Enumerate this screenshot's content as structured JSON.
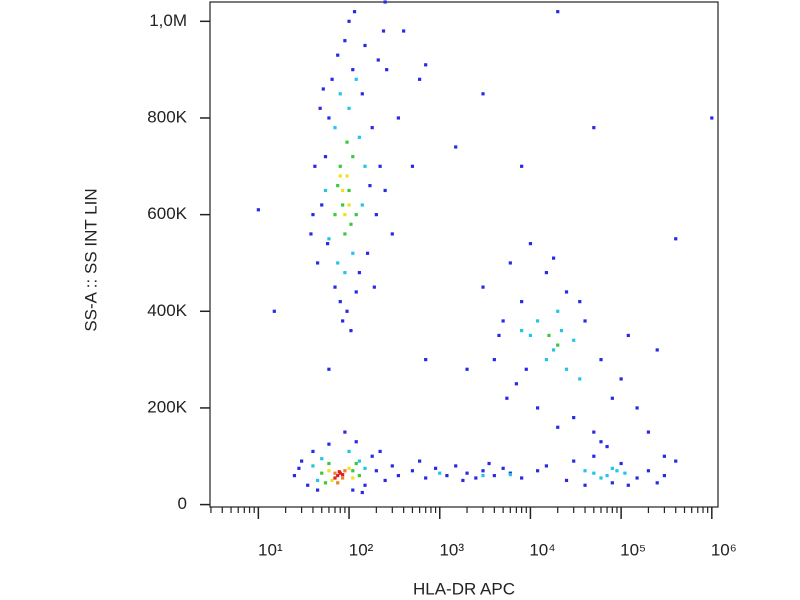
{
  "chart_data": {
    "type": "scatter",
    "x_label": "HLA-DR APC",
    "y_label": "SS-A :: SS INT LIN",
    "xscale": "log",
    "xlim": [
      2.93,
      1170000
    ],
    "ylim": [
      -5000,
      1040000
    ],
    "xticks": [
      {
        "value": 10,
        "label": "10¹"
      },
      {
        "value": 100,
        "label": "10²"
      },
      {
        "value": 1000,
        "label": "10³"
      },
      {
        "value": 10000,
        "label": "10⁴"
      },
      {
        "value": 100000,
        "label": "10⁵"
      },
      {
        "value": 1000000,
        "label": "10⁶"
      }
    ],
    "xminorticks": [
      3,
      4,
      5,
      6,
      7,
      8,
      9,
      20,
      30,
      40,
      50,
      60,
      70,
      80,
      90,
      200,
      300,
      400,
      500,
      600,
      700,
      800,
      900,
      2000,
      3000,
      4000,
      5000,
      6000,
      7000,
      8000,
      9000,
      20000,
      30000,
      40000,
      50000,
      60000,
      70000,
      80000,
      90000,
      200000,
      300000,
      400000,
      500000,
      600000,
      700000,
      800000,
      900000
    ],
    "yticks": [
      0,
      {
        "value": 200000,
        "label": "200K"
      },
      {
        "value": 400000,
        "label": "400K"
      },
      {
        "value": 600000,
        "label": "600K"
      },
      {
        "value": 800000,
        "label": "800K"
      },
      {
        "value": 1000000,
        "label": "1,0M"
      }
    ],
    "series": [
      {
        "color": "#2a2ae6",
        "x": [
          45,
          50,
          55,
          60,
          65,
          70,
          75,
          80,
          90,
          95,
          110,
          120,
          140,
          160,
          180,
          200,
          220,
          250,
          40,
          42,
          48,
          58,
          150,
          170,
          130,
          100,
          300,
          350,
          260,
          85,
          105,
          190,
          38,
          52,
          210,
          240,
          115,
          400,
          500,
          600,
          25,
          30,
          35,
          40,
          45,
          150,
          180,
          200,
          250,
          300,
          120,
          90,
          60,
          220,
          28,
          140,
          110,
          350,
          500,
          700,
          900,
          1200,
          1500,
          2000,
          2500,
          3000,
          4000,
          5000,
          6000,
          8000,
          12000,
          15000,
          600,
          1800,
          3500,
          3000,
          4000,
          5000,
          6000,
          7000,
          8000,
          10000,
          12000,
          15000,
          20000,
          25000,
          30000,
          40000,
          50000,
          60000,
          80000,
          100000,
          150000,
          200000,
          250000,
          300000,
          4500,
          9000,
          18000,
          70000,
          120000,
          35000,
          5500,
          25000,
          30000,
          40000,
          50000,
          80000,
          100000,
          150000,
          200000,
          300000,
          400000,
          60000,
          120000,
          250000,
          10,
          15,
          700,
          1500,
          3000,
          20000,
          50000,
          1000000,
          400000,
          8000,
          2000,
          700,
          60,
          250
        ],
        "values": [
          500000,
          620000,
          720000,
          800000,
          880000,
          450000,
          930000,
          420000,
          960000,
          400000,
          900000,
          440000,
          850000,
          520000,
          780000,
          600000,
          700000,
          650000,
          600000,
          700000,
          820000,
          540000,
          950000,
          660000,
          480000,
          1000000,
          560000,
          800000,
          900000,
          380000,
          360000,
          450000,
          560000,
          860000,
          920000,
          980000,
          1020000,
          980000,
          700000,
          880000,
          60000,
          90000,
          40000,
          110000,
          30000,
          40000,
          100000,
          70000,
          50000,
          80000,
          130000,
          150000,
          125000,
          110000,
          75000,
          25000,
          30000,
          60000,
          70000,
          55000,
          75000,
          60000,
          80000,
          65000,
          55000,
          70000,
          60000,
          75000,
          65000,
          55000,
          70000,
          80000,
          90000,
          50000,
          85000,
          450000,
          300000,
          380000,
          500000,
          250000,
          420000,
          540000,
          200000,
          480000,
          160000,
          440000,
          180000,
          380000,
          150000,
          300000,
          220000,
          260000,
          200000,
          150000,
          320000,
          100000,
          350000,
          280000,
          510000,
          120000,
          350000,
          420000,
          220000,
          50000,
          90000,
          40000,
          100000,
          45000,
          85000,
          55000,
          70000,
          60000,
          90000,
          130000,
          40000,
          45000,
          610000,
          400000,
          910000,
          740000,
          850000,
          1020000,
          780000,
          800000,
          550000,
          700000,
          280000,
          300000,
          280000,
          1040000
        ]
      },
      {
        "color": "#22c4ea",
        "x": [
          60,
          70,
          80,
          90,
          100,
          110,
          130,
          140,
          55,
          120,
          75,
          150,
          40,
          50,
          130,
          150,
          100,
          45,
          10000,
          15000,
          20000,
          25000,
          30000,
          12000,
          18000,
          35000,
          8000,
          22000,
          50000,
          70000,
          90000,
          60000,
          110000,
          40000,
          80000,
          1000,
          3000,
          6000
        ],
        "values": [
          550000,
          780000,
          850000,
          480000,
          820000,
          520000,
          760000,
          620000,
          650000,
          880000,
          500000,
          700000,
          80000,
          95000,
          90000,
          75000,
          110000,
          50000,
          350000,
          300000,
          400000,
          280000,
          340000,
          380000,
          320000,
          260000,
          360000,
          360000,
          65000,
          60000,
          70000,
          55000,
          65000,
          70000,
          75000,
          65000,
          60000,
          62000
        ]
      },
      {
        "color": "#3cc83c",
        "x": [
          70,
          80,
          90,
          100,
          110,
          85,
          95,
          75,
          120,
          105,
          50,
          60,
          110,
          130,
          55,
          120,
          20000,
          16000
        ],
        "values": [
          600000,
          700000,
          560000,
          650000,
          720000,
          620000,
          750000,
          660000,
          600000,
          580000,
          65000,
          85000,
          70000,
          60000,
          45000,
          85000,
          330000,
          350000
        ]
      },
      {
        "color": "#f0e020",
        "x": [
          85,
          95,
          100,
          90,
          80,
          60,
          65,
          100,
          110
        ],
        "values": [
          650000,
          680000,
          620000,
          600000,
          680000,
          70000,
          50000,
          75000,
          55000
        ]
      },
      {
        "color": "#f08020",
        "x": [
          70,
          85,
          90,
          75
        ],
        "values": [
          65000,
          55000,
          70000,
          45000
        ]
      },
      {
        "color": "#e02020",
        "x": [
          75,
          80,
          70,
          85,
          78
        ],
        "values": [
          60000,
          65000,
          55000,
          62000,
          68000
        ]
      }
    ]
  }
}
